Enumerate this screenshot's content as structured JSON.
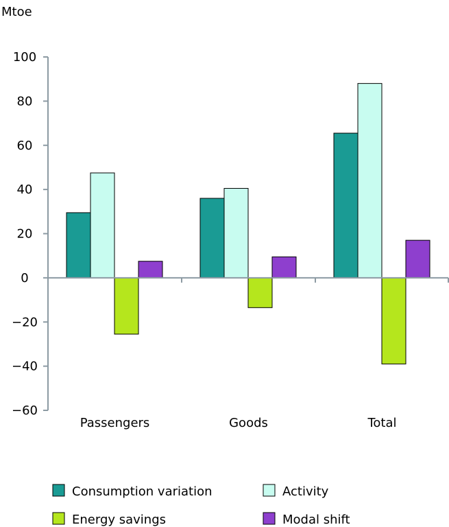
{
  "chart_data": {
    "type": "bar",
    "unit_label": "Mtoe",
    "categories": [
      "Passengers",
      "Goods",
      "Total"
    ],
    "series": [
      {
        "name": "Consumption variation",
        "color": "#1a9b94",
        "values": [
          29.5,
          36,
          65.5
        ]
      },
      {
        "name": "Activity",
        "color": "#c8fcf0",
        "values": [
          47.5,
          40.5,
          88
        ]
      },
      {
        "name": "Energy savings",
        "color": "#b5e61d",
        "values": [
          -25.5,
          -13.5,
          -39
        ]
      },
      {
        "name": "Modal shift",
        "color": "#8e3fce",
        "values": [
          7.5,
          9.5,
          17
        ]
      }
    ],
    "ylim": [
      -60,
      100
    ],
    "yticks": [
      -60,
      -40,
      -20,
      0,
      20,
      40,
      60,
      80,
      100
    ],
    "ytick_labels": [
      "-60",
      "-40",
      "-20",
      "0",
      "20",
      "40",
      "60",
      "80",
      "100"
    ],
    "grid": false,
    "legend_position": "bottom"
  }
}
